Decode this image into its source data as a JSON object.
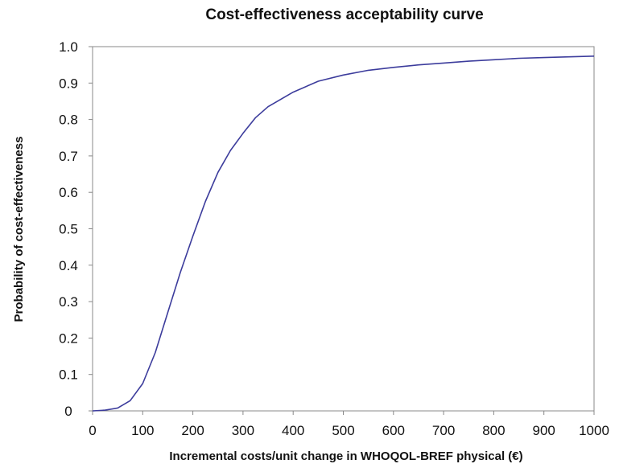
{
  "chart_data": {
    "type": "line",
    "title": "Cost-effectiveness acceptability curve",
    "xlabel": "Incremental costs/unit change in WHOQOL-BREF physical (€)",
    "ylabel": "Probability of cost-effectiveness",
    "xlim": [
      0,
      1000
    ],
    "ylim": [
      0,
      1.0
    ],
    "x_ticks": [
      "0",
      "100",
      "200",
      "300",
      "400",
      "500",
      "600",
      "700",
      "800",
      "900",
      "1000"
    ],
    "y_ticks": [
      "0",
      "0.1",
      "0.2",
      "0.3",
      "0.4",
      "0.5",
      "0.6",
      "0.7",
      "0.8",
      "0.9",
      "1.0"
    ],
    "grid": false,
    "legend": "none",
    "series": [
      {
        "color": "#3c3c9c",
        "x": [
          0,
          25,
          50,
          75,
          100,
          125,
          150,
          175,
          200,
          225,
          250,
          275,
          300,
          325,
          350,
          400,
          450,
          500,
          550,
          600,
          650,
          700,
          750,
          800,
          850,
          900,
          950,
          1000
        ],
        "y": [
          0,
          0.002,
          0.008,
          0.028,
          0.075,
          0.16,
          0.27,
          0.38,
          0.48,
          0.575,
          0.655,
          0.715,
          0.762,
          0.805,
          0.835,
          0.875,
          0.905,
          0.922,
          0.935,
          0.943,
          0.95,
          0.955,
          0.96,
          0.964,
          0.968,
          0.97,
          0.972,
          0.974
        ]
      }
    ]
  }
}
